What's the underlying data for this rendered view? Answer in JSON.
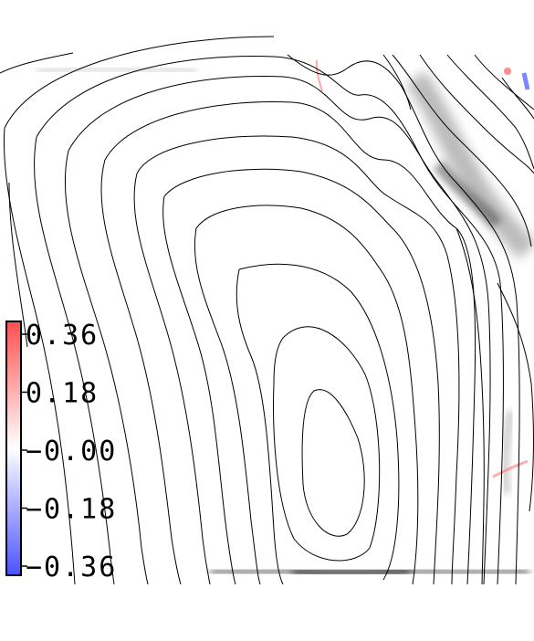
{
  "chart_data": {
    "type": "heatmap",
    "title": "",
    "xlabel": "",
    "ylabel": "",
    "grid": false,
    "colorbar": {
      "placement": "left",
      "colormap": [
        "#4b52ff",
        "#ffffff",
        "#ff4f4f"
      ],
      "vmin": -0.36,
      "vmax": 0.36,
      "ticks": [
        {
          "value": 0.36,
          "label": "0.36"
        },
        {
          "value": 0.18,
          "label": "0.18"
        },
        {
          "value": 0.0,
          "label": "−0.00"
        },
        {
          "value": -0.18,
          "label": "−0.18"
        },
        {
          "value": -0.36,
          "label": "−0.36"
        }
      ]
    },
    "contours": {
      "color": "#000000",
      "levels": 14,
      "description_free": true
    },
    "overlay": {
      "gray_bands": "dark shaded regions along upper right ridge and bottom edge"
    }
  }
}
